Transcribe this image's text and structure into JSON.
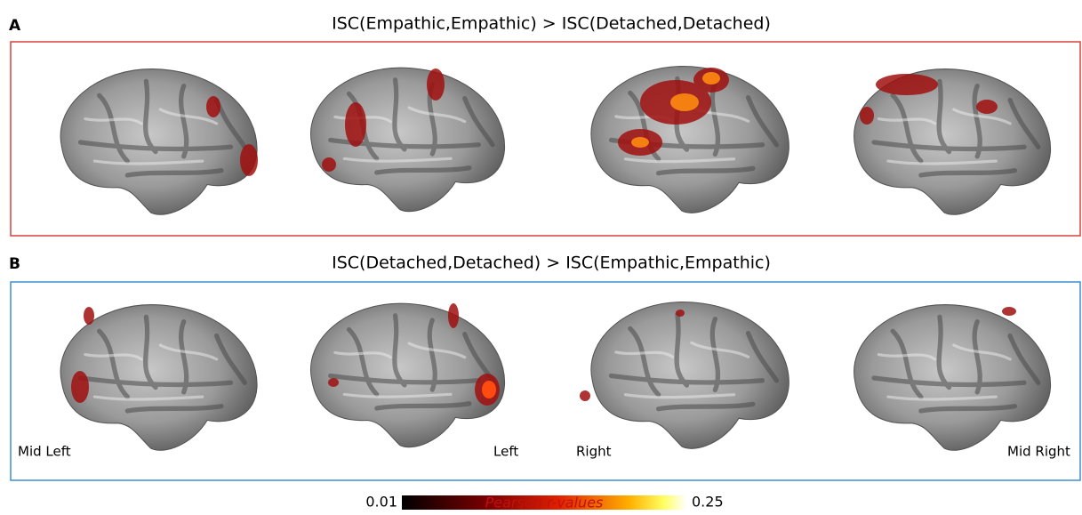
{
  "panels": [
    {
      "letter": "A",
      "title": "ISC(Empathic,Empathic) > ISC(Detached,Detached)"
    },
    {
      "letter": "B",
      "title": "ISC(Detached,Detached) > ISC(Empathic,Empathic)"
    }
  ],
  "view_labels": [
    "Mid Left",
    "Left",
    "Right",
    "Mid Right"
  ],
  "colorbar": {
    "min": "0.01",
    "label": "Pearson r-values",
    "max": "0.25"
  }
}
